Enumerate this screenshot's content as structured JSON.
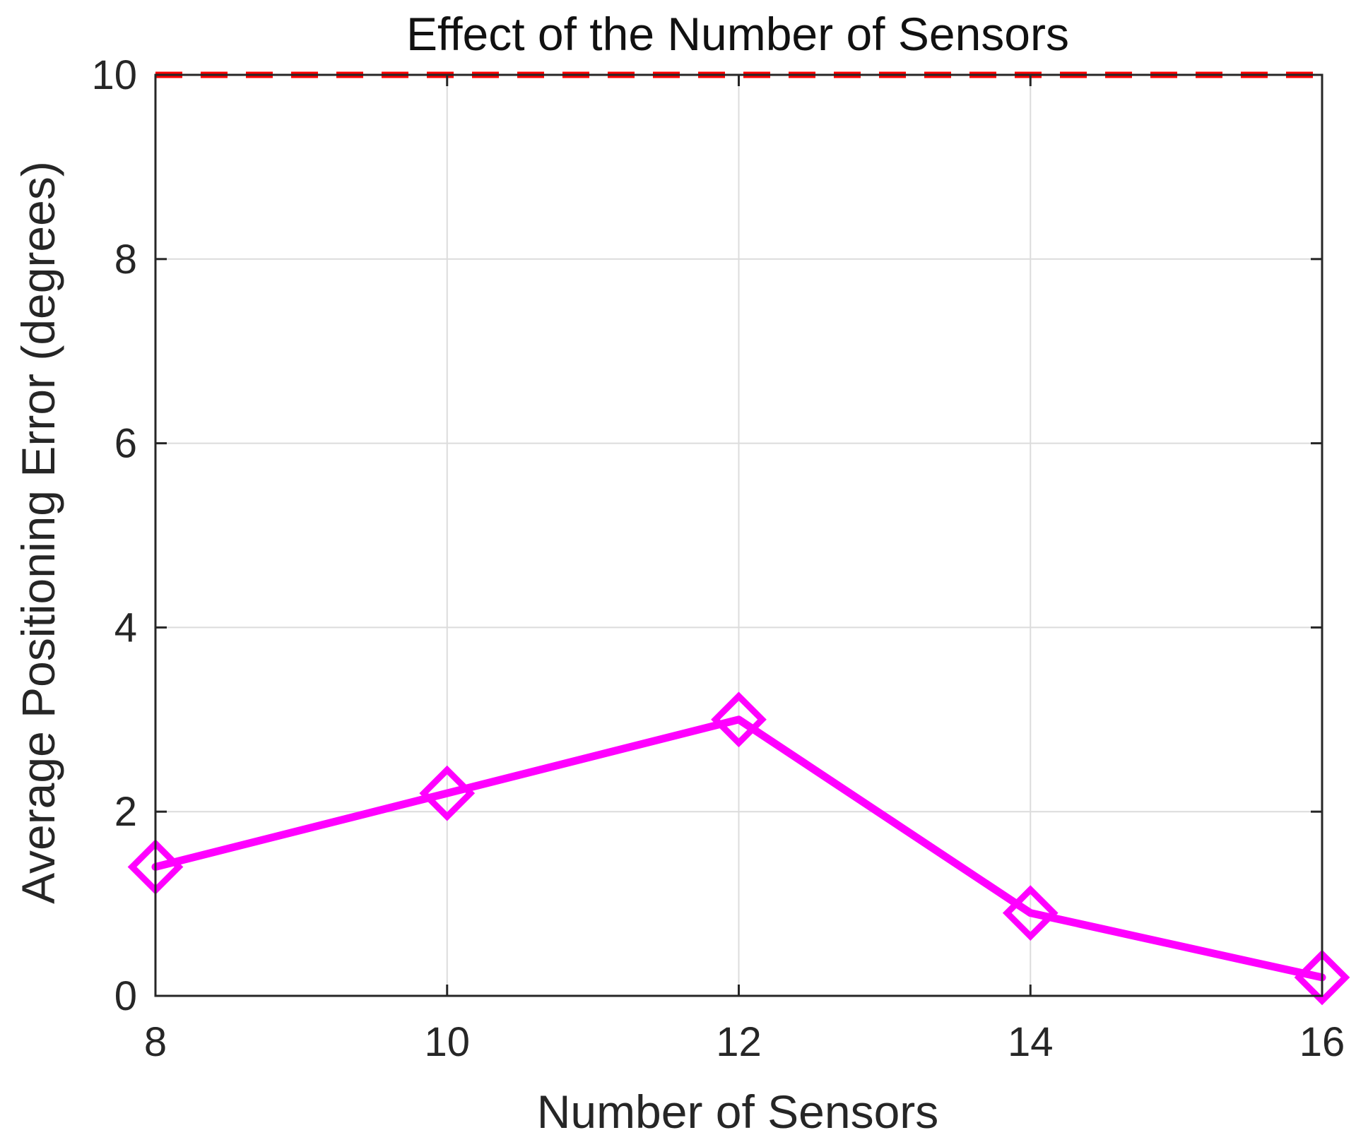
{
  "chart_data": {
    "type": "line",
    "title": "Effect of the Number of Sensors",
    "xlabel": "Number of Sensors",
    "ylabel": "Average Positioning Error (degrees)",
    "xlim": [
      8,
      16
    ],
    "ylim": [
      0,
      10
    ],
    "xticks": [
      "8",
      "10",
      "12",
      "14",
      "16"
    ],
    "yticks": [
      "0",
      "2",
      "4",
      "6",
      "8",
      "10"
    ],
    "grid": true,
    "legend": "none",
    "x": [
      8,
      10,
      12,
      14,
      16
    ],
    "series": [
      {
        "values": [
          1.4,
          2.2,
          3.0,
          0.9,
          0.2
        ],
        "color": "#ff00ff",
        "marker": "diamond",
        "line_style": "solid"
      }
    ],
    "reference_lines": [
      {
        "orientation": "horizontal",
        "y": 10,
        "color": "#ff0000",
        "line_style": "dashed"
      }
    ]
  }
}
